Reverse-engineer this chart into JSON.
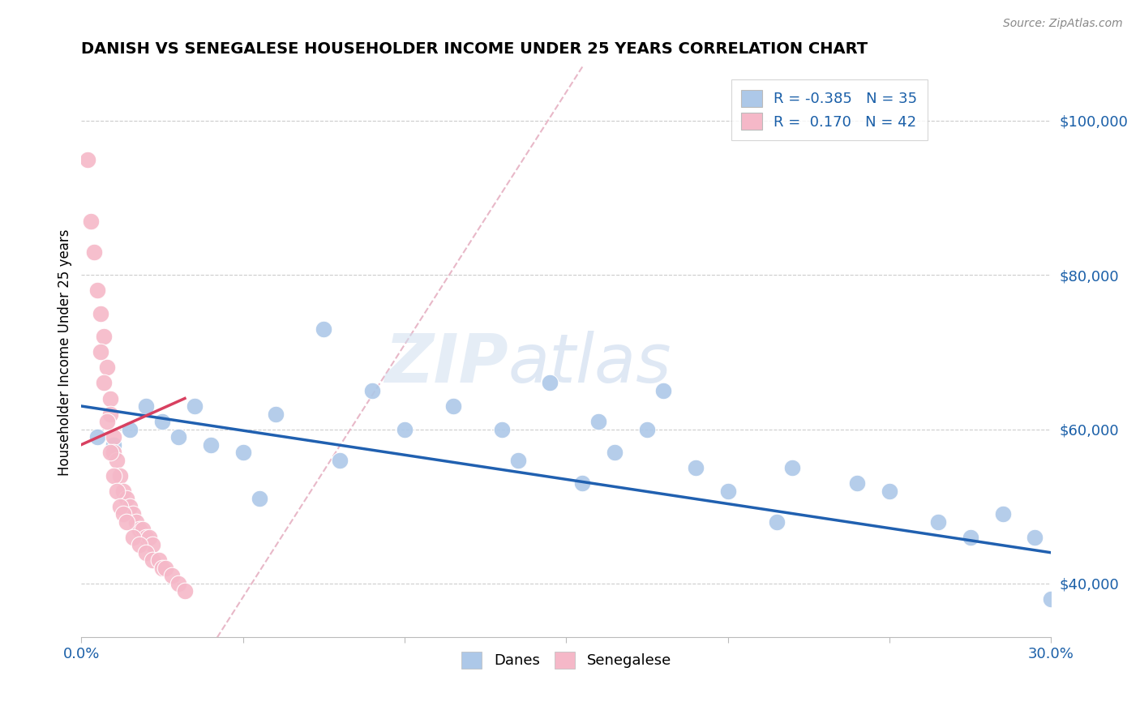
{
  "title": "DANISH VS SENEGALESE HOUSEHOLDER INCOME UNDER 25 YEARS CORRELATION CHART",
  "source": "Source: ZipAtlas.com",
  "ylabel": "Householder Income Under 25 years",
  "xlim": [
    0.0,
    0.3
  ],
  "ylim": [
    33000,
    107000
  ],
  "yticks": [
    40000,
    60000,
    80000,
    100000
  ],
  "ytick_labels": [
    "$40,000",
    "$60,000",
    "$80,000",
    "$100,000"
  ],
  "xticks": [
    0.0,
    0.05,
    0.1,
    0.15,
    0.2,
    0.25,
    0.3
  ],
  "legend_danes_R": "-0.385",
  "legend_danes_N": "35",
  "legend_senegalese_R": "0.170",
  "legend_senegalese_N": "42",
  "danes_color": "#adc8e8",
  "senegalese_color": "#f5b8c8",
  "danes_line_color": "#2060b0",
  "senegalese_line_color": "#d84060",
  "diagonal_color": "#e8b8c8",
  "danes_x": [
    0.005,
    0.01,
    0.015,
    0.02,
    0.025,
    0.03,
    0.035,
    0.04,
    0.05,
    0.06,
    0.075,
    0.09,
    0.1,
    0.115,
    0.13,
    0.145,
    0.16,
    0.165,
    0.175,
    0.18,
    0.19,
    0.2,
    0.215,
    0.22,
    0.24,
    0.25,
    0.265,
    0.275,
    0.285,
    0.295,
    0.3,
    0.155,
    0.135,
    0.08,
    0.055
  ],
  "danes_y": [
    59000,
    58000,
    60000,
    63000,
    61000,
    59000,
    63000,
    58000,
    57000,
    62000,
    73000,
    65000,
    60000,
    63000,
    60000,
    66000,
    61000,
    57000,
    60000,
    65000,
    55000,
    52000,
    48000,
    55000,
    53000,
    52000,
    48000,
    46000,
    49000,
    46000,
    38000,
    53000,
    56000,
    56000,
    51000
  ],
  "senegalese_x": [
    0.002,
    0.004,
    0.005,
    0.006,
    0.007,
    0.008,
    0.009,
    0.009,
    0.01,
    0.01,
    0.011,
    0.012,
    0.013,
    0.014,
    0.015,
    0.016,
    0.017,
    0.018,
    0.019,
    0.02,
    0.021,
    0.022,
    0.003,
    0.006,
    0.007,
    0.008,
    0.009,
    0.01,
    0.011,
    0.012,
    0.013,
    0.014,
    0.016,
    0.018,
    0.02,
    0.022,
    0.024,
    0.025,
    0.026,
    0.028,
    0.03,
    0.032
  ],
  "senegalese_y": [
    95000,
    83000,
    78000,
    75000,
    72000,
    68000,
    64000,
    62000,
    59000,
    57000,
    56000,
    54000,
    52000,
    51000,
    50000,
    49000,
    48000,
    47000,
    47000,
    46000,
    46000,
    45000,
    87000,
    70000,
    66000,
    61000,
    57000,
    54000,
    52000,
    50000,
    49000,
    48000,
    46000,
    45000,
    44000,
    43000,
    43000,
    42000,
    42000,
    41000,
    40000,
    39000
  ],
  "danes_line_x": [
    0.0,
    0.3
  ],
  "danes_line_y": [
    63000,
    44000
  ],
  "senegalese_line_x": [
    0.0,
    0.032
  ],
  "senegalese_line_y": [
    58000,
    64000
  ]
}
